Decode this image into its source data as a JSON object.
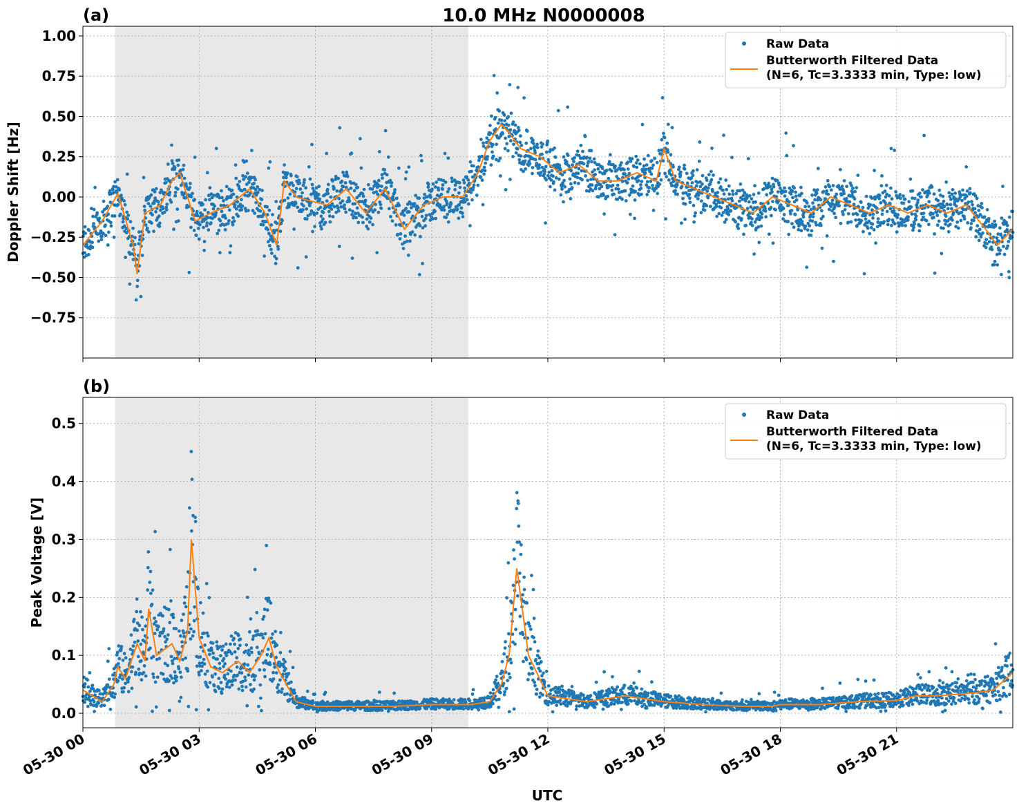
{
  "title": "10.0 MHz N0000008",
  "shared_xlabel": "UTC",
  "colors": {
    "raw": "#1f77b4",
    "filtered": "#ff7f0e",
    "shade": "#e8e8e8",
    "grid": "#b0b0b0"
  },
  "legend": {
    "raw_label": "Raw Data",
    "filtered_line1": "Butterworth Filtered Data",
    "filtered_line2": "(N=6, Tc=3.3333 min, Type: low)"
  },
  "chart_data": [
    {
      "type": "scatter",
      "panel_label": "(a)",
      "ylabel": "Doppler Shift [Hz]",
      "xlim_hours": [
        0,
        24
      ],
      "ylim": [
        -1.0,
        1.06
      ],
      "yticks": [
        1.0,
        0.75,
        0.5,
        0.25,
        0.0,
        -0.25,
        -0.5,
        -0.75
      ],
      "ytick_labels": [
        "1.00",
        "0.75",
        "0.50",
        "0.25",
        "0.00",
        "−0.25",
        "−0.50",
        "−0.75"
      ],
      "xtick_labels": [
        "05-30 00",
        "05-30 03",
        "05-30 06",
        "05-30 09",
        "05-30 12",
        "05-30 15",
        "05-30 18",
        "05-30 21"
      ],
      "xtick_hours": [
        0,
        3,
        6,
        9,
        12,
        15,
        18,
        21
      ],
      "shaded_span_hours": [
        0.83,
        9.95
      ],
      "grid": true,
      "legend_position": "top-right",
      "series": [
        {
          "name": "Raw Data",
          "style": "points"
        },
        {
          "name": "Butterworth Filtered Data (N=6, Tc=3.3333 min, Type: low)",
          "style": "line",
          "x": [
            0,
            0.5,
            0.9,
            1.3,
            1.4,
            1.6,
            2.0,
            2.3,
            2.5,
            2.9,
            3.3,
            3.8,
            4.3,
            4.7,
            5.0,
            5.2,
            5.5,
            5.8,
            6.3,
            6.8,
            7.3,
            7.8,
            8.3,
            8.8,
            9.3,
            9.8,
            10.2,
            10.5,
            10.8,
            11.0,
            11.3,
            11.8,
            12.3,
            12.8,
            13.3,
            13.8,
            14.3,
            14.8,
            15.0,
            15.3,
            15.8,
            16.3,
            16.8,
            17.3,
            17.8,
            18.3,
            18.8,
            19.3,
            19.8,
            20.3,
            20.8,
            21.3,
            21.8,
            22.3,
            22.8,
            23.3,
            23.6,
            24.0
          ],
          "y": [
            -0.3,
            -0.15,
            0.02,
            -0.3,
            -0.48,
            -0.1,
            -0.05,
            0.1,
            0.15,
            -0.15,
            -0.1,
            -0.05,
            0.05,
            -0.1,
            -0.3,
            0.1,
            0.0,
            -0.02,
            -0.05,
            0.05,
            -0.1,
            0.05,
            -0.2,
            -0.05,
            0.0,
            0.0,
            0.15,
            0.35,
            0.45,
            0.4,
            0.3,
            0.25,
            0.15,
            0.2,
            0.1,
            0.1,
            0.15,
            0.1,
            0.3,
            0.1,
            0.05,
            0.0,
            -0.05,
            -0.1,
            0.0,
            -0.05,
            -0.1,
            0.0,
            -0.05,
            -0.1,
            -0.05,
            -0.1,
            -0.05,
            -0.1,
            -0.05,
            -0.2,
            -0.3,
            -0.2
          ]
        }
      ]
    },
    {
      "type": "scatter",
      "panel_label": "(b)",
      "ylabel": "Peak Voltage [V]",
      "xlabel": "UTC",
      "xlim_hours": [
        0,
        24
      ],
      "ylim": [
        -0.025,
        0.545
      ],
      "yticks": [
        0.5,
        0.4,
        0.3,
        0.2,
        0.1,
        0.0
      ],
      "ytick_labels": [
        "0.5",
        "0.4",
        "0.3",
        "0.2",
        "0.1",
        "0.0"
      ],
      "xtick_labels": [
        "05-30 00",
        "05-30 03",
        "05-30 06",
        "05-30 09",
        "05-30 12",
        "05-30 15",
        "05-30 18",
        "05-30 21"
      ],
      "xtick_hours": [
        0,
        3,
        6,
        9,
        12,
        15,
        18,
        21
      ],
      "shaded_span_hours": [
        0.83,
        9.95
      ],
      "grid": true,
      "legend_position": "top-right",
      "series": [
        {
          "name": "Raw Data",
          "style": "points"
        },
        {
          "name": "Butterworth Filtered Data (N=6, Tc=3.3333 min, Type: low)",
          "style": "line",
          "x": [
            0,
            0.5,
            0.8,
            0.9,
            1.1,
            1.3,
            1.4,
            1.6,
            1.7,
            1.9,
            2.1,
            2.3,
            2.5,
            2.7,
            2.8,
            3.0,
            3.3,
            3.6,
            4.0,
            4.3,
            4.6,
            4.8,
            5.0,
            5.5,
            6.0,
            7.0,
            8.0,
            9.0,
            10.0,
            10.5,
            10.8,
            11.0,
            11.2,
            11.5,
            12.0,
            13.0,
            14.0,
            15.0,
            16.0,
            17.0,
            17.8,
            18.0,
            19.0,
            20.0,
            21.0,
            21.5,
            22.0,
            23.0,
            23.5,
            24.0
          ],
          "y": [
            0.04,
            0.02,
            0.05,
            0.08,
            0.06,
            0.1,
            0.12,
            0.09,
            0.18,
            0.1,
            0.11,
            0.12,
            0.09,
            0.14,
            0.3,
            0.13,
            0.08,
            0.07,
            0.09,
            0.07,
            0.1,
            0.13,
            0.08,
            0.02,
            0.012,
            0.012,
            0.012,
            0.015,
            0.015,
            0.02,
            0.05,
            0.1,
            0.25,
            0.1,
            0.03,
            0.02,
            0.03,
            0.02,
            0.015,
            0.012,
            0.012,
            0.015,
            0.015,
            0.02,
            0.022,
            0.03,
            0.03,
            0.035,
            0.04,
            0.07
          ]
        }
      ]
    }
  ]
}
